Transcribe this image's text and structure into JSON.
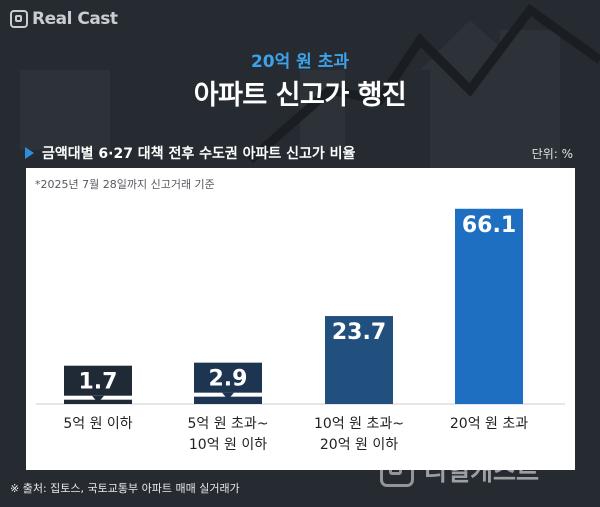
{
  "brand": {
    "logo_text": "Real Cast",
    "watermark_text": "리얼캐스트"
  },
  "header": {
    "subtitle": "20억 원 초과",
    "title": "아파트 신고가 행진"
  },
  "chart_header": {
    "heading": "금액대별 6·27 대책 전후 수도권 아파트 신고가 비율",
    "unit": "단위: %"
  },
  "note": "*2025년 7월 28일까지 신고거래 기준",
  "source": "※ 출처: 집토스, 국토교통부 아파트 매매 실거래가",
  "colors": {
    "background": "#262b31",
    "accent": "#3ea2ea",
    "bar_dark": "#1d3550",
    "bar_mid": "#214f7e",
    "bar_bright": "#1e6fc2",
    "label_dark": "#1f2a36"
  },
  "chart_data": {
    "type": "bar",
    "title": "금액대별 6·27 대책 전후 수도권 아파트 신고가 비율",
    "unit": "%",
    "categories": [
      "5억 원 이하",
      "5억 원 초과~\n10억 원 이하",
      "10억 원 초과~\n20억 원 이하",
      "20억 원 초과"
    ],
    "values": [
      1.7,
      2.9,
      23.7,
      66.1
    ],
    "labels": [
      "1.7",
      "2.9",
      "23.7",
      "66.1"
    ],
    "ylim": [
      0,
      70
    ],
    "grid": false,
    "legend": "none"
  }
}
